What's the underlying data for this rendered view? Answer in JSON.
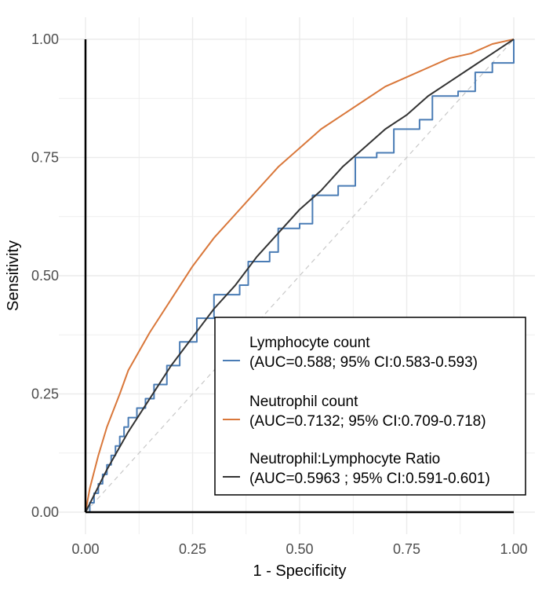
{
  "chart_data": {
    "type": "line",
    "title": "",
    "xlabel": "1 - Specificity",
    "ylabel": "Sensitivity",
    "xlim": [
      0,
      1
    ],
    "ylim": [
      0,
      1
    ],
    "x_ticks": [
      "0.00",
      "0.25",
      "0.50",
      "0.75",
      "1.00"
    ],
    "y_ticks": [
      "0.00",
      "0.25",
      "0.50",
      "0.75",
      "1.00"
    ],
    "grid": true,
    "reference_line": {
      "from": [
        0,
        0
      ],
      "to": [
        1,
        1
      ],
      "style": "dashed"
    },
    "legend_position": "bottom-right",
    "colors": {
      "lymphocyte": "#4a7cb5",
      "neutrophil": "#d9773a",
      "nlr": "#333333",
      "grid": "#ebebeb",
      "reference": "#c8c8c8"
    },
    "series": [
      {
        "name": "Lymphocyte count",
        "auc_label": "(AUC=0.588; 95% CI:0.583-0.593)",
        "color": "#4a7cb5",
        "step": true,
        "points": [
          [
            0,
            0
          ],
          [
            0.01,
            0.02
          ],
          [
            0.02,
            0.04
          ],
          [
            0.03,
            0.06
          ],
          [
            0.04,
            0.08
          ],
          [
            0.05,
            0.1
          ],
          [
            0.06,
            0.12
          ],
          [
            0.07,
            0.14
          ],
          [
            0.08,
            0.16
          ],
          [
            0.09,
            0.18
          ],
          [
            0.1,
            0.2
          ],
          [
            0.12,
            0.22
          ],
          [
            0.14,
            0.24
          ],
          [
            0.16,
            0.27
          ],
          [
            0.19,
            0.31
          ],
          [
            0.22,
            0.36
          ],
          [
            0.26,
            0.41
          ],
          [
            0.3,
            0.46
          ],
          [
            0.36,
            0.48
          ],
          [
            0.38,
            0.53
          ],
          [
            0.43,
            0.55
          ],
          [
            0.45,
            0.6
          ],
          [
            0.5,
            0.61
          ],
          [
            0.53,
            0.67
          ],
          [
            0.59,
            0.69
          ],
          [
            0.63,
            0.75
          ],
          [
            0.68,
            0.76
          ],
          [
            0.72,
            0.81
          ],
          [
            0.78,
            0.83
          ],
          [
            0.81,
            0.88
          ],
          [
            0.87,
            0.89
          ],
          [
            0.91,
            0.93
          ],
          [
            0.95,
            0.95
          ],
          [
            1,
            1
          ]
        ]
      },
      {
        "name": "Neutrophil count",
        "auc_label": "(AUC=0.7132; 95% CI:0.709-0.718)",
        "color": "#d9773a",
        "step": false,
        "points": [
          [
            0,
            0
          ],
          [
            0.01,
            0.05
          ],
          [
            0.03,
            0.12
          ],
          [
            0.05,
            0.18
          ],
          [
            0.08,
            0.25
          ],
          [
            0.1,
            0.3
          ],
          [
            0.15,
            0.38
          ],
          [
            0.2,
            0.45
          ],
          [
            0.25,
            0.52
          ],
          [
            0.3,
            0.58
          ],
          [
            0.35,
            0.63
          ],
          [
            0.4,
            0.68
          ],
          [
            0.45,
            0.73
          ],
          [
            0.5,
            0.77
          ],
          [
            0.55,
            0.81
          ],
          [
            0.6,
            0.84
          ],
          [
            0.65,
            0.87
          ],
          [
            0.7,
            0.9
          ],
          [
            0.75,
            0.92
          ],
          [
            0.8,
            0.94
          ],
          [
            0.85,
            0.96
          ],
          [
            0.9,
            0.97
          ],
          [
            0.95,
            0.99
          ],
          [
            1,
            1
          ]
        ]
      },
      {
        "name": "Neutrophil:Lymphocyte Ratio",
        "auc_label": "(AUC=0.5963 ; 95% CI:0.591-0.601)",
        "color": "#333333",
        "step": false,
        "points": [
          [
            0,
            0
          ],
          [
            0.05,
            0.09
          ],
          [
            0.1,
            0.17
          ],
          [
            0.15,
            0.24
          ],
          [
            0.2,
            0.31
          ],
          [
            0.25,
            0.37
          ],
          [
            0.3,
            0.43
          ],
          [
            0.35,
            0.48
          ],
          [
            0.4,
            0.54
          ],
          [
            0.45,
            0.59
          ],
          [
            0.5,
            0.64
          ],
          [
            0.55,
            0.68
          ],
          [
            0.6,
            0.73
          ],
          [
            0.65,
            0.77
          ],
          [
            0.7,
            0.81
          ],
          [
            0.75,
            0.84
          ],
          [
            0.8,
            0.88
          ],
          [
            0.85,
            0.91
          ],
          [
            0.9,
            0.94
          ],
          [
            0.95,
            0.97
          ],
          [
            1,
            1
          ]
        ]
      }
    ]
  }
}
